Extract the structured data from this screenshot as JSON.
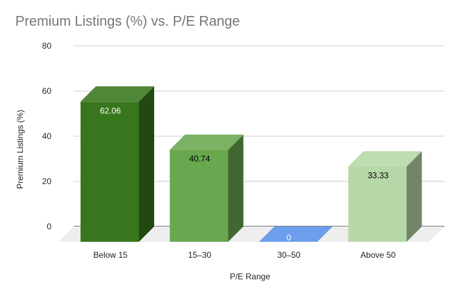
{
  "chart_data": {
    "type": "bar",
    "style": "3d",
    "title": "Premium Listings (%) vs. P/E Range",
    "xlabel": "P/E Range",
    "ylabel": "Premium Listings (%)",
    "categories": [
      "Below 15",
      "15–30",
      "30–50",
      "Above 50"
    ],
    "values": [
      62.06,
      40.74,
      0,
      33.33
    ],
    "data_labels": [
      "62.06",
      "40.74",
      "0",
      "33.33"
    ],
    "ylim": [
      0,
      80
    ],
    "yticks": [
      0,
      20,
      40,
      60,
      80
    ],
    "ytick_labels": [
      "0",
      "20",
      "40",
      "60",
      "80"
    ],
    "grid": true,
    "legend": "none",
    "colors": {
      "bars": [
        "#38761d",
        "#6aa84f",
        "#6d9eeb",
        "#b6d7a8"
      ],
      "label_text": [
        "#ffffff",
        "#000000",
        "#ffffff",
        "#000000"
      ],
      "gridline": "#cccccc",
      "floor": "#eeeeee",
      "baseline": "#333333",
      "axis_text": "#222222"
    }
  }
}
